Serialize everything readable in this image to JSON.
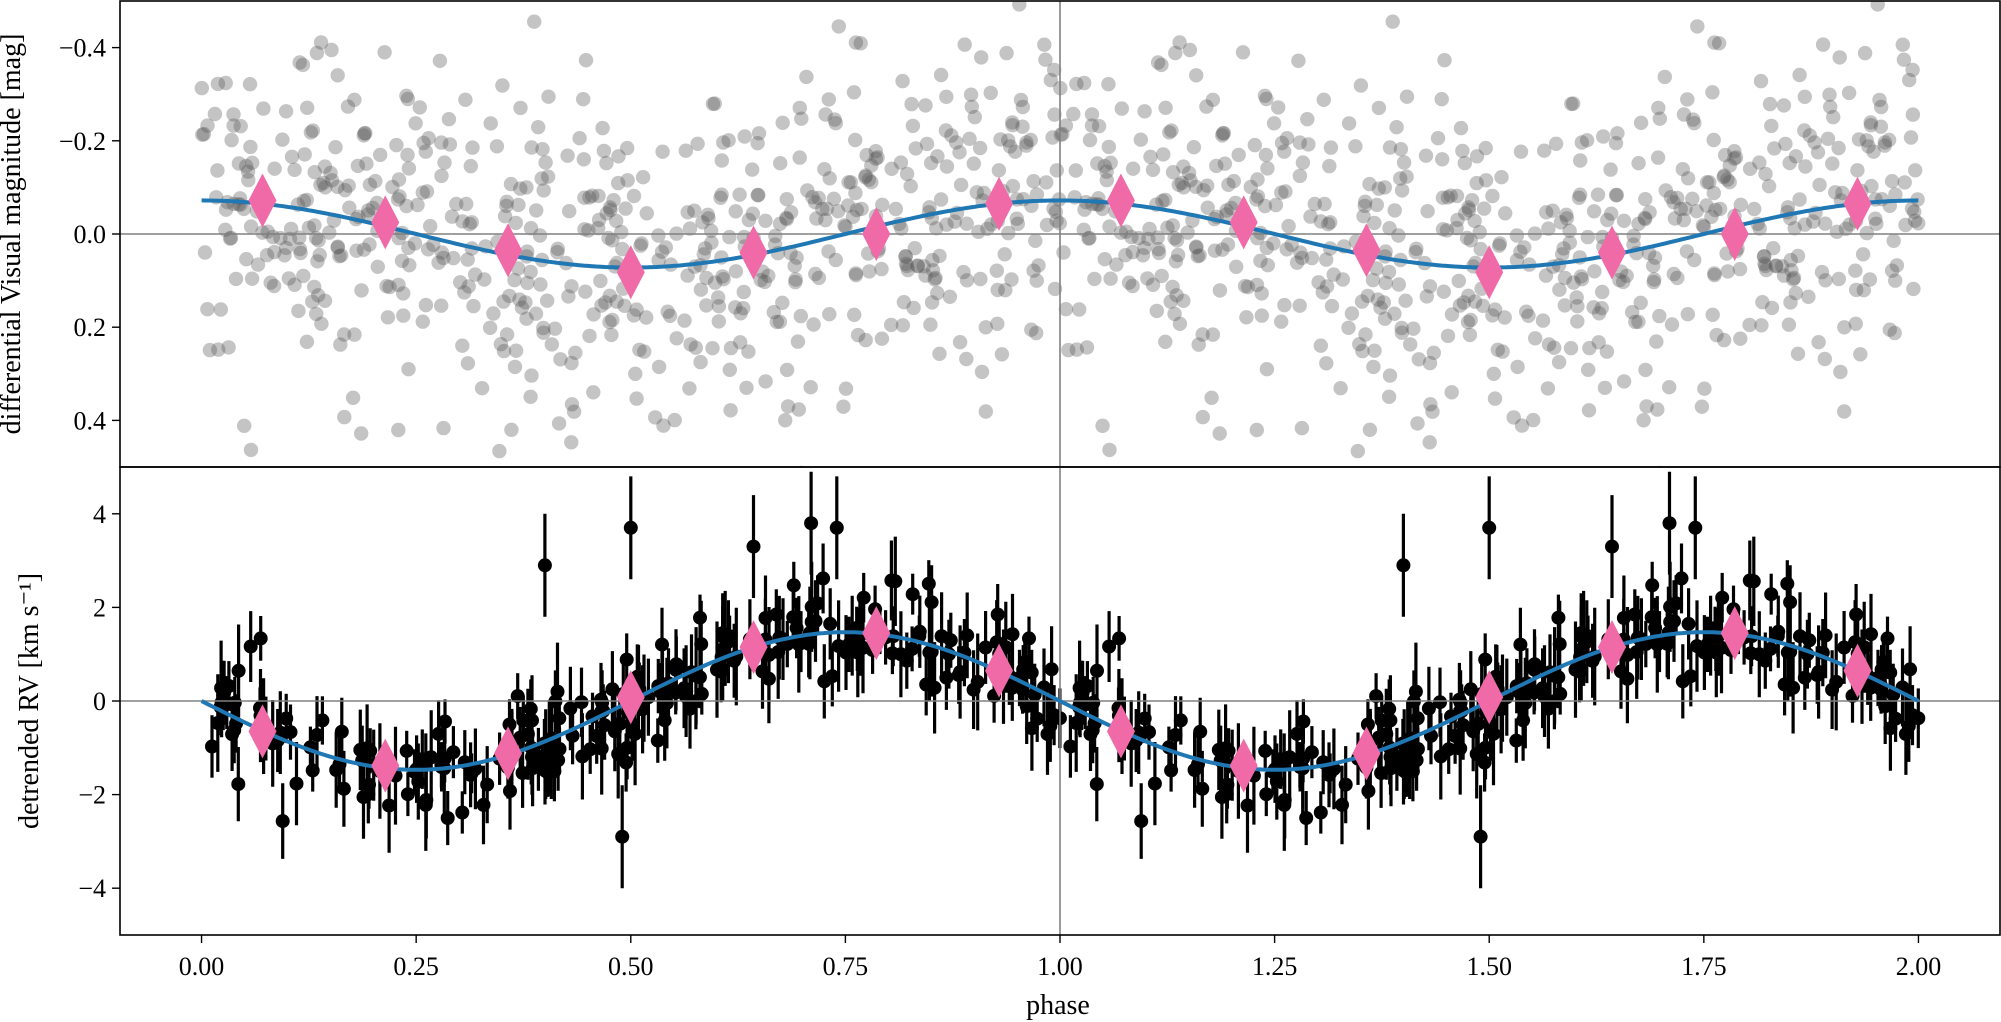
{
  "chart_data": [
    {
      "type": "scatter",
      "panel": "top",
      "ylabel": "differential Visual magnitude [mag]",
      "xlim": [
        -0.095,
        2.095
      ],
      "ylim": [
        0.5,
        -0.5
      ],
      "y_inverted": true,
      "y_ticks": [
        -0.4,
        -0.2,
        0.0,
        0.2,
        0.4
      ],
      "y_tick_labels": [
        "−0.4",
        "−0.2",
        "0.0",
        "0.2",
        "0.4"
      ],
      "reference_lines": {
        "horizontal_y": 0.0,
        "vertical_x": 1.0
      },
      "model": {
        "type": "sinusoid",
        "amplitude": 0.072,
        "phase_of_brightest": 0.0,
        "period": 1.0
      },
      "raw_points": {
        "description": "~1400 individual photometric measurements, scatter about ±0.4 mag",
        "count_per_phase_unit": 650,
        "sigma": 0.17,
        "seed": 7
      },
      "binned_points": {
        "x": [
          0.071,
          0.214,
          0.357,
          0.5,
          0.643,
          0.786,
          0.929,
          1.071,
          1.214,
          1.357,
          1.5,
          1.643,
          1.786,
          1.929
        ],
        "y": [
          -0.072,
          -0.025,
          0.035,
          0.082,
          0.04,
          0.0,
          -0.065,
          -0.072,
          -0.025,
          0.035,
          0.082,
          0.04,
          0.0,
          -0.065
        ]
      }
    },
    {
      "type": "scatter",
      "panel": "bottom",
      "xlabel": "phase",
      "ylabel": "detrended RV [km s⁻¹]",
      "xlim": [
        -0.095,
        2.095
      ],
      "ylim": [
        -5,
        5
      ],
      "y_ticks": [
        -4,
        -2,
        0,
        2,
        4
      ],
      "y_tick_labels": [
        "−4",
        "−2",
        "0",
        "2",
        "4"
      ],
      "x_ticks": [
        0.0,
        0.25,
        0.5,
        0.75,
        1.0,
        1.25,
        1.5,
        1.75,
        2.0
      ],
      "x_tick_labels": [
        "0.00",
        "0.25",
        "0.50",
        "0.75",
        "1.00",
        "1.25",
        "1.50",
        "1.75",
        "2.00"
      ],
      "reference_lines": {
        "horizontal_y": 0.0,
        "vertical_x": 1.0
      },
      "model": {
        "type": "sinusoid",
        "amplitude": 1.47,
        "phase_of_minimum": 0.25,
        "period": 1.0
      },
      "raw_points": {
        "description": "~500 radial velocity measurements with error bars",
        "count_per_phase_unit": 260,
        "sigma": 0.55,
        "error_bar_typical": 0.7,
        "seed": 11
      },
      "notable_points": {
        "x": [
          0.4,
          0.5,
          0.49,
          0.643,
          0.71,
          0.74,
          0.505,
          1.4,
          1.5,
          1.49,
          1.643,
          1.71,
          1.74,
          1.505
        ],
        "y": [
          2.9,
          3.7,
          -2.9,
          3.3,
          3.8,
          3.7,
          -0.7,
          2.9,
          3.7,
          -2.9,
          3.3,
          3.8,
          3.7,
          -0.7
        ]
      },
      "binned_points": {
        "x": [
          0.071,
          0.214,
          0.357,
          0.5,
          0.643,
          0.786,
          0.929,
          1.071,
          1.214,
          1.357,
          1.5,
          1.643,
          1.786,
          1.929
        ],
        "y": [
          -0.65,
          -1.38,
          -1.12,
          0.08,
          1.15,
          1.45,
          0.65,
          -0.65,
          -1.38,
          -1.12,
          0.08,
          1.15,
          1.45,
          0.65
        ]
      }
    }
  ]
}
